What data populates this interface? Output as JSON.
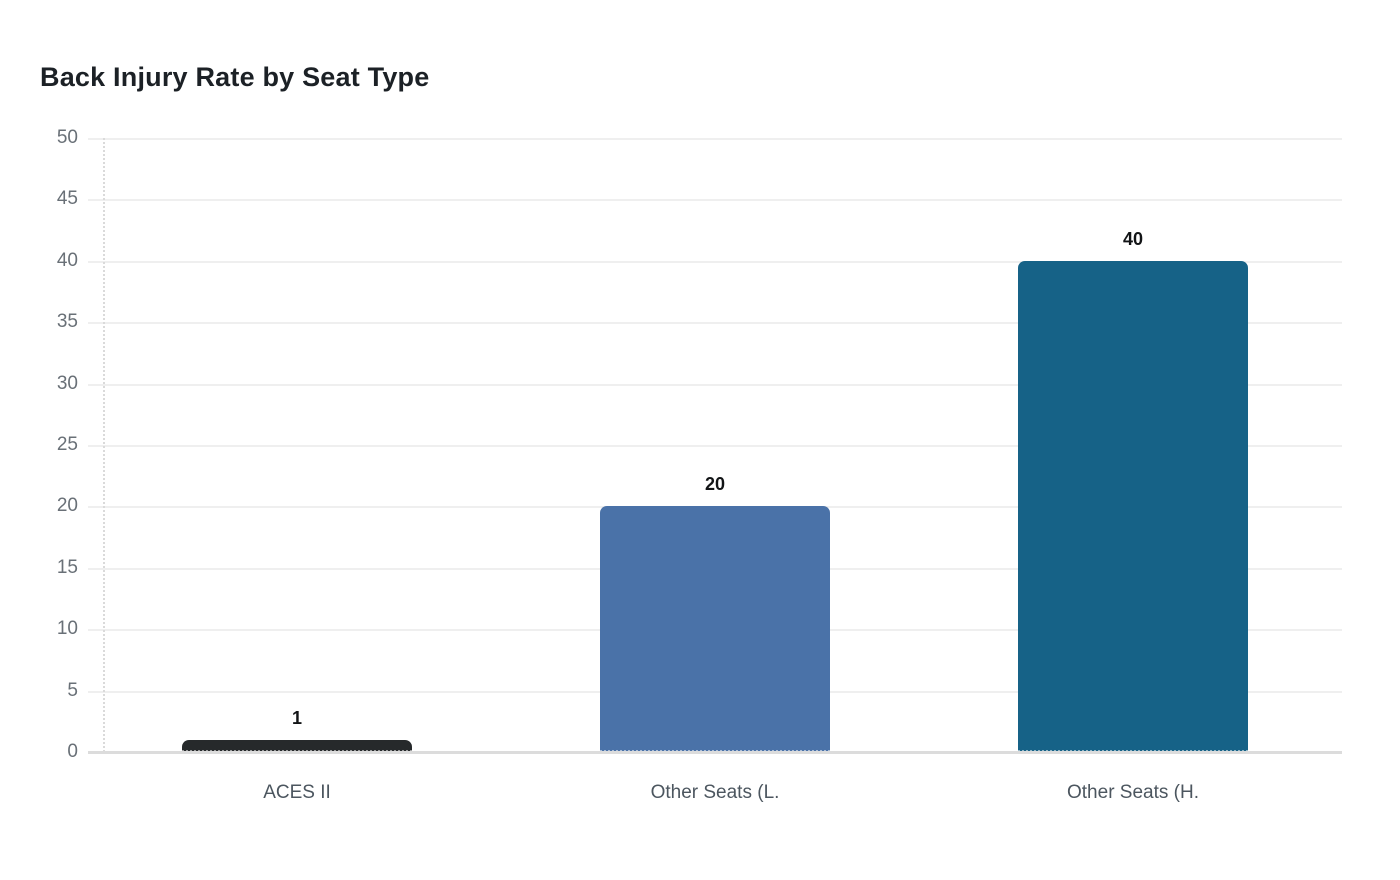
{
  "chart_data": {
    "type": "bar",
    "title": "Back Injury Rate by Seat Type",
    "categories": [
      "ACES II",
      "Other Seats (L.",
      "Other Seats (H."
    ],
    "values": [
      1,
      20,
      40
    ],
    "value_labels": [
      "1",
      "20",
      "40"
    ],
    "bar_colors": [
      "#26292b",
      "#4a72a8",
      "#166287"
    ],
    "xlabel": "",
    "ylabel": "",
    "ylim": [
      0,
      50
    ],
    "yticks": [
      0,
      5,
      10,
      15,
      20,
      25,
      30,
      35,
      40,
      45,
      50
    ],
    "grid": true,
    "legend": false,
    "colors": {
      "background": "#ffffff",
      "title": "#1c2126",
      "gridline": "#efefef",
      "baseline": "#dcdcdc",
      "y_axis_dotted": "#dadada",
      "tick_label": "#697077",
      "category_label": "#4c565f",
      "value_label": "#121416"
    }
  }
}
